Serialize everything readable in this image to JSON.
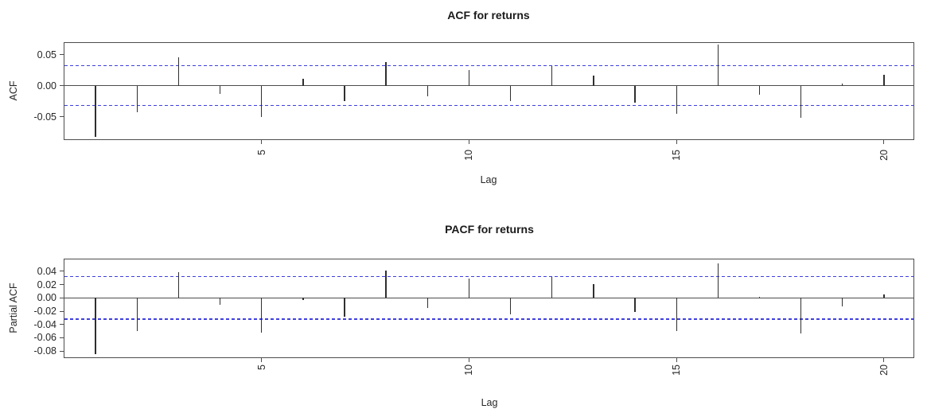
{
  "figure": {
    "background": "#ffffff",
    "colors": {
      "bar": "#2f2f2f",
      "axis": "#4d4d4d",
      "text": "#262626",
      "conf_line": "#4040dd"
    }
  },
  "chart_data": [
    {
      "type": "bar",
      "title": "ACF for returns",
      "ylabel": "ACF",
      "xlabel": "Lag",
      "x": [
        1,
        2,
        3,
        4,
        5,
        6,
        7,
        8,
        9,
        10,
        11,
        12,
        13,
        14,
        15,
        16,
        17,
        18,
        19,
        20
      ],
      "values": [
        -0.082,
        -0.043,
        0.045,
        -0.013,
        -0.05,
        0.011,
        -0.025,
        0.038,
        -0.017,
        0.025,
        -0.025,
        0.032,
        0.016,
        -0.027,
        -0.045,
        0.066,
        -0.014,
        -0.051,
        0.004,
        0.018
      ],
      "conf_band": 0.032,
      "conf_band_color": "blue",
      "conf_band_linestyle": "dashed",
      "zero_line": true,
      "grid": false,
      "legend": "none",
      "xlim": [
        0.23,
        20.73
      ],
      "ylim": [
        -0.0872,
        0.0705
      ],
      "yticks": [
        {
          "value": 0.05,
          "label": "0.05"
        },
        {
          "value": 0.0,
          "label": "0.00"
        },
        {
          "value": -0.05,
          "label": "-0.05"
        }
      ],
      "xticks": [
        {
          "value": 5,
          "label": "5"
        },
        {
          "value": 10,
          "label": "10"
        },
        {
          "value": 15,
          "label": "15"
        },
        {
          "value": 20,
          "label": "20"
        }
      ],
      "xtick_label_orientation": "vertical"
    },
    {
      "type": "bar",
      "title": "PACF for returns",
      "ylabel": "Partial ACF",
      "xlabel": "Lag",
      "x": [
        1,
        2,
        3,
        4,
        5,
        6,
        7,
        8,
        9,
        10,
        11,
        12,
        13,
        14,
        15,
        16,
        17,
        18,
        19,
        20
      ],
      "values": [
        -0.085,
        -0.05,
        0.039,
        -0.01,
        -0.052,
        -0.003,
        -0.028,
        0.041,
        -0.015,
        0.029,
        -0.025,
        0.032,
        0.021,
        -0.021,
        -0.05,
        0.052,
        0.002,
        -0.053,
        -0.013,
        0.005
      ],
      "conf_band": 0.032,
      "conf_band_color": "blue",
      "conf_band_linestyle": "dashed",
      "zero_line": true,
      "grid": false,
      "legend": "none",
      "xlim": [
        0.23,
        20.73
      ],
      "ylim": [
        -0.0905,
        0.0589
      ],
      "yticks": [
        {
          "value": 0.04,
          "label": "0.04"
        },
        {
          "value": 0.02,
          "label": "0.02"
        },
        {
          "value": 0.0,
          "label": "0.00"
        },
        {
          "value": -0.02,
          "label": "-0.02"
        },
        {
          "value": -0.04,
          "label": "-0.04"
        },
        {
          "value": -0.06,
          "label": "-0.06"
        },
        {
          "value": -0.08,
          "label": "-0.08"
        }
      ],
      "xticks": [
        {
          "value": 5,
          "label": "5"
        },
        {
          "value": 10,
          "label": "10"
        },
        {
          "value": 15,
          "label": "15"
        },
        {
          "value": 20,
          "label": "20"
        }
      ],
      "xtick_label_orientation": "vertical"
    }
  ]
}
